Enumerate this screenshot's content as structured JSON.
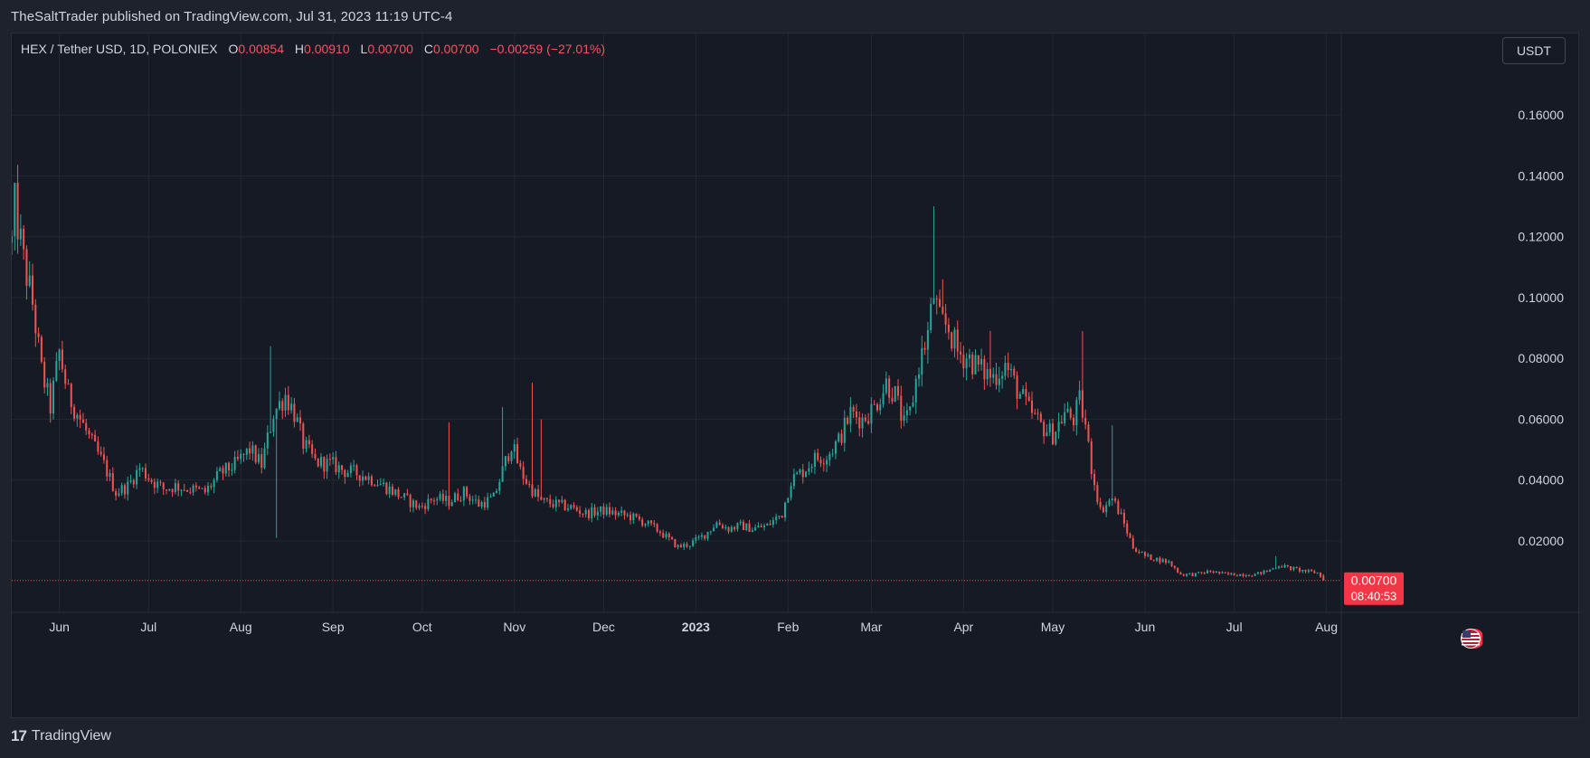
{
  "header": {
    "published_text": "TheSaltTrader published on TradingView.com, Jul 31, 2023 11:19 UTC-4"
  },
  "legend": {
    "symbol": "HEX / Tether USD, 1D, POLONIEX",
    "o_label": "O",
    "o_value": "0.00854",
    "h_label": "H",
    "h_value": "0.00910",
    "l_label": "L",
    "l_value": "0.00700",
    "c_label": "C",
    "c_value": "0.00700",
    "change": "−0.00259 (−27.01%)"
  },
  "currency_button": "USDT",
  "price_label": {
    "price": "0.00700",
    "countdown": "08:40:53"
  },
  "footer": {
    "logo_mark": "17",
    "brand": "TradingView"
  },
  "icons": {
    "flag": "us-flag-icon",
    "logo": "tradingview-logo-icon"
  },
  "colors": {
    "up": "#26a69a",
    "down": "#ef5350",
    "background": "#161a25",
    "grid": "#232733",
    "text": "#d1d4dc",
    "price_label_bg": "#f23645"
  },
  "chart_data": {
    "type": "candlestick",
    "interval": "1D",
    "scale": "linear",
    "grid": true,
    "x_range": [
      "2022-05-16",
      "2023-08-06"
    ],
    "ylim": [
      -0.0035,
      0.1785
    ],
    "y_ticks": [
      "0.16000",
      "0.14000",
      "0.12000",
      "0.10000",
      "0.08000",
      "0.06000",
      "0.04000",
      "0.02000"
    ],
    "x_ticks": [
      {
        "date": "2022-06-01",
        "label": "Jun",
        "bold": false
      },
      {
        "date": "2022-07-01",
        "label": "Jul",
        "bold": false
      },
      {
        "date": "2022-08-01",
        "label": "Aug",
        "bold": false
      },
      {
        "date": "2022-09-01",
        "label": "Sep",
        "bold": false
      },
      {
        "date": "2022-10-01",
        "label": "Oct",
        "bold": false
      },
      {
        "date": "2022-11-01",
        "label": "Nov",
        "bold": false
      },
      {
        "date": "2022-12-01",
        "label": "Dec",
        "bold": false
      },
      {
        "date": "2023-01-01",
        "label": "2023",
        "bold": true
      },
      {
        "date": "2023-02-01",
        "label": "Feb",
        "bold": false
      },
      {
        "date": "2023-03-01",
        "label": "Mar",
        "bold": false
      },
      {
        "date": "2023-04-01",
        "label": "Apr",
        "bold": false
      },
      {
        "date": "2023-05-01",
        "label": "May",
        "bold": false
      },
      {
        "date": "2023-06-01",
        "label": "Jun",
        "bold": false
      },
      {
        "date": "2023-07-01",
        "label": "Jul",
        "bold": false
      },
      {
        "date": "2023-08-01",
        "label": "Aug",
        "bold": false
      }
    ],
    "last_price": 0.007,
    "close_path": [
      [
        "2022-05-16",
        0.118
      ],
      [
        "2022-05-17",
        0.13
      ],
      [
        "2022-05-20",
        0.112
      ],
      [
        "2022-05-23",
        0.098
      ],
      [
        "2022-05-26",
        0.076
      ],
      [
        "2022-05-29",
        0.064
      ],
      [
        "2022-06-01",
        0.082
      ],
      [
        "2022-06-04",
        0.068
      ],
      [
        "2022-06-08",
        0.06
      ],
      [
        "2022-06-12",
        0.052
      ],
      [
        "2022-06-16",
        0.045
      ],
      [
        "2022-06-20",
        0.036
      ],
      [
        "2022-06-24",
        0.038
      ],
      [
        "2022-06-28",
        0.044
      ],
      [
        "2022-07-02",
        0.04
      ],
      [
        "2022-07-06",
        0.037
      ],
      [
        "2022-07-10",
        0.038
      ],
      [
        "2022-07-15",
        0.037
      ],
      [
        "2022-07-20",
        0.036
      ],
      [
        "2022-07-25",
        0.042
      ],
      [
        "2022-07-30",
        0.045
      ],
      [
        "2022-08-04",
        0.05
      ],
      [
        "2022-08-08",
        0.045
      ],
      [
        "2022-08-12",
        0.062
      ],
      [
        "2022-08-16",
        0.068
      ],
      [
        "2022-08-19",
        0.062
      ],
      [
        "2022-08-22",
        0.052
      ],
      [
        "2022-08-26",
        0.046
      ],
      [
        "2022-09-01",
        0.045
      ],
      [
        "2022-09-05",
        0.043
      ],
      [
        "2022-09-10",
        0.042
      ],
      [
        "2022-09-15",
        0.04
      ],
      [
        "2022-09-20",
        0.037
      ],
      [
        "2022-09-25",
        0.034
      ],
      [
        "2022-09-30",
        0.031
      ],
      [
        "2022-10-05",
        0.034
      ],
      [
        "2022-10-10",
        0.033
      ],
      [
        "2022-10-15",
        0.036
      ],
      [
        "2022-10-20",
        0.032
      ],
      [
        "2022-10-25",
        0.034
      ],
      [
        "2022-10-29",
        0.046
      ],
      [
        "2022-10-31",
        0.052
      ],
      [
        "2022-11-03",
        0.043
      ],
      [
        "2022-11-06",
        0.038
      ],
      [
        "2022-11-10",
        0.033
      ],
      [
        "2022-11-15",
        0.032
      ],
      [
        "2022-11-20",
        0.031
      ],
      [
        "2022-11-25",
        0.029
      ],
      [
        "2022-12-01",
        0.03
      ],
      [
        "2022-12-05",
        0.029
      ],
      [
        "2022-12-10",
        0.028
      ],
      [
        "2022-12-15",
        0.026
      ],
      [
        "2022-12-20",
        0.023
      ],
      [
        "2022-12-26",
        0.018
      ],
      [
        "2022-12-30",
        0.019
      ],
      [
        "2023-01-04",
        0.022
      ],
      [
        "2023-01-08",
        0.026
      ],
      [
        "2023-01-12",
        0.024
      ],
      [
        "2023-01-16",
        0.025
      ],
      [
        "2023-01-20",
        0.024
      ],
      [
        "2023-01-25",
        0.025
      ],
      [
        "2023-01-30",
        0.029
      ],
      [
        "2023-02-02",
        0.04
      ],
      [
        "2023-02-06",
        0.043
      ],
      [
        "2023-02-10",
        0.047
      ],
      [
        "2023-02-14",
        0.048
      ],
      [
        "2023-02-18",
        0.053
      ],
      [
        "2023-02-22",
        0.062
      ],
      [
        "2023-02-26",
        0.06
      ],
      [
        "2023-03-02",
        0.064
      ],
      [
        "2023-03-06",
        0.072
      ],
      [
        "2023-03-09",
        0.068
      ],
      [
        "2023-03-12",
        0.058
      ],
      [
        "2023-03-14",
        0.062
      ],
      [
        "2023-03-17",
        0.078
      ],
      [
        "2023-03-20",
        0.088
      ],
      [
        "2023-03-22",
        0.101
      ],
      [
        "2023-03-24",
        0.092
      ],
      [
        "2023-03-27",
        0.09
      ],
      [
        "2023-03-30",
        0.082
      ],
      [
        "2023-04-03",
        0.08
      ],
      [
        "2023-04-07",
        0.076
      ],
      [
        "2023-04-11",
        0.074
      ],
      [
        "2023-04-15",
        0.078
      ],
      [
        "2023-04-19",
        0.07
      ],
      [
        "2023-04-23",
        0.063
      ],
      [
        "2023-04-27",
        0.058
      ],
      [
        "2023-05-01",
        0.055
      ],
      [
        "2023-05-05",
        0.062
      ],
      [
        "2023-05-08",
        0.06
      ],
      [
        "2023-05-10",
        0.066
      ],
      [
        "2023-05-12",
        0.058
      ],
      [
        "2023-05-14",
        0.044
      ],
      [
        "2023-05-17",
        0.03
      ],
      [
        "2023-05-21",
        0.034
      ],
      [
        "2023-05-24",
        0.028
      ],
      [
        "2023-05-28",
        0.018
      ],
      [
        "2023-06-01",
        0.015
      ],
      [
        "2023-06-05",
        0.014
      ],
      [
        "2023-06-09",
        0.013
      ],
      [
        "2023-06-13",
        0.009
      ],
      [
        "2023-06-18",
        0.009
      ],
      [
        "2023-06-23",
        0.01
      ],
      [
        "2023-06-28",
        0.009
      ],
      [
        "2023-07-03",
        0.009
      ],
      [
        "2023-07-08",
        0.009
      ],
      [
        "2023-07-12",
        0.01
      ],
      [
        "2023-07-16",
        0.012
      ],
      [
        "2023-07-20",
        0.011
      ],
      [
        "2023-07-25",
        0.01
      ],
      [
        "2023-07-29",
        0.0095
      ],
      [
        "2023-07-31",
        0.007
      ]
    ],
    "spikes": [
      {
        "date": "2022-08-11",
        "high": 0.084
      },
      {
        "date": "2022-08-13",
        "low": 0.021
      },
      {
        "date": "2022-10-28",
        "high": 0.064
      },
      {
        "date": "2022-11-07",
        "high": 0.072
      },
      {
        "date": "2022-11-10",
        "high": 0.06
      },
      {
        "date": "2022-10-10",
        "high": 0.059
      },
      {
        "date": "2023-03-22",
        "high": 0.13
      },
      {
        "date": "2023-03-25",
        "high": 0.106
      },
      {
        "date": "2023-04-10",
        "high": 0.089
      },
      {
        "date": "2023-05-11",
        "high": 0.089
      },
      {
        "date": "2023-05-21",
        "high": 0.058
      },
      {
        "date": "2022-05-17",
        "high": 0.135
      },
      {
        "date": "2022-07-14",
        "high": 0.034
      },
      {
        "date": "2023-07-15",
        "high": 0.015
      }
    ]
  }
}
